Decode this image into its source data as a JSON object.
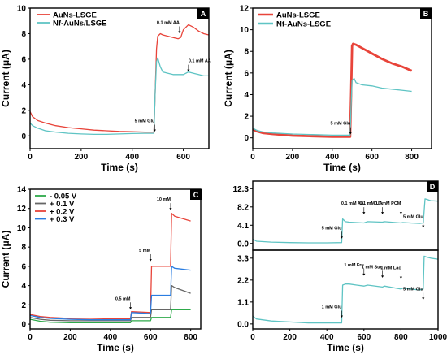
{
  "chart_data": [
    {
      "panel": "A",
      "type": "line",
      "xlabel": "Time (s)",
      "ylabel": "Current (μA)",
      "xlim": [
        0,
        700
      ],
      "ylim": [
        -1,
        10
      ],
      "xticks": [
        0,
        200,
        400,
        600
      ],
      "yticks": [
        0,
        2,
        4,
        6,
        8,
        10
      ],
      "legend": "top-left",
      "series": [
        {
          "name": "AuNs-LSGE",
          "color": "#e8443a",
          "x": [
            0,
            10,
            30,
            60,
            100,
            150,
            200,
            250,
            300,
            350,
            400,
            450,
            485,
            490,
            495,
            500,
            510,
            520,
            540,
            560,
            580,
            590,
            600,
            620,
            640,
            660,
            680,
            700
          ],
          "y": [
            1.9,
            1.5,
            1.2,
            1.0,
            0.8,
            0.65,
            0.55,
            0.45,
            0.4,
            0.35,
            0.32,
            0.3,
            0.3,
            3.5,
            6.8,
            7.8,
            8.0,
            7.9,
            7.8,
            7.7,
            7.6,
            7.7,
            8.3,
            8.7,
            8.5,
            8.2,
            8.0,
            7.9
          ]
        },
        {
          "name": "Nf-AuNs/LSGE",
          "color": "#5fc4c4",
          "x": [
            0,
            10,
            30,
            60,
            100,
            150,
            200,
            250,
            300,
            350,
            400,
            450,
            485,
            490,
            495,
            500,
            510,
            520,
            540,
            560,
            580,
            600,
            620,
            640,
            660,
            680,
            700
          ],
          "y": [
            1.0,
            0.8,
            0.6,
            0.4,
            0.3,
            0.2,
            0.15,
            0.12,
            0.12,
            0.15,
            0.18,
            0.2,
            0.2,
            3.5,
            5.8,
            6.1,
            5.4,
            5.0,
            4.9,
            4.8,
            4.8,
            4.8,
            5.0,
            4.9,
            4.8,
            4.7,
            4.7
          ]
        }
      ],
      "annotations": [
        {
          "text": "5 mM Glu",
          "x": 488,
          "y": 0.3
        },
        {
          "text": "0.1 mM AA",
          "x": 585,
          "y": 8.0
        },
        {
          "text": "0.1 mM AA",
          "x": 620,
          "y": 5.0
        }
      ],
      "label": "A"
    },
    {
      "panel": "B",
      "type": "line",
      "xlabel": "Time (s)",
      "ylabel": "Current (μA)",
      "xlim": [
        0,
        900
      ],
      "ylim": [
        -1,
        12
      ],
      "xticks": [
        0,
        200,
        400,
        600,
        800
      ],
      "yticks": [
        0,
        2,
        4,
        6,
        8,
        10,
        12
      ],
      "legend": "top-left",
      "series": [
        {
          "name": "AuNs-LSGE",
          "color": "#e8443a",
          "x": [
            0,
            20,
            50,
            100,
            200,
            300,
            400,
            490,
            495,
            500,
            505,
            520,
            550,
            600,
            650,
            700,
            750,
            800
          ],
          "y": [
            0.8,
            0.6,
            0.45,
            0.35,
            0.2,
            0.15,
            0.1,
            0.1,
            4.0,
            8.5,
            8.7,
            8.6,
            8.3,
            7.8,
            7.3,
            6.9,
            6.6,
            6.2
          ]
        },
        {
          "name": "Nf-AuNs-LSGE",
          "color": "#5fc4c4",
          "x": [
            0,
            20,
            50,
            100,
            200,
            300,
            400,
            490,
            495,
            500,
            510,
            520,
            550,
            600,
            650,
            700,
            750,
            800
          ],
          "y": [
            0.9,
            0.7,
            0.55,
            0.45,
            0.35,
            0.3,
            0.25,
            0.25,
            3.0,
            5.3,
            5.5,
            5.1,
            4.9,
            4.8,
            4.6,
            4.5,
            4.4,
            4.3
          ]
        }
      ],
      "annotations": [
        {
          "text": "5 mM Glu",
          "x": 492,
          "y": 0.3
        }
      ],
      "label": "B"
    },
    {
      "panel": "C",
      "type": "line",
      "xlabel": "Time (s)",
      "ylabel": "Current (μA)",
      "xlim": [
        0,
        850
      ],
      "ylim": [
        -0.5,
        14
      ],
      "xticks": [
        0,
        200,
        400,
        600,
        800
      ],
      "yticks": [
        0,
        2,
        4,
        6,
        8,
        10,
        12,
        14
      ],
      "legend": "top-left",
      "series": [
        {
          "name": "- 0.05  V",
          "color": "#2eaa4a",
          "x": [
            0,
            50,
            100,
            200,
            300,
            400,
            500,
            505,
            600,
            605,
            700,
            705,
            800
          ],
          "y": [
            0.5,
            0.3,
            0.2,
            0.15,
            0.15,
            0.15,
            0.15,
            0.35,
            0.35,
            0.7,
            0.7,
            1.5,
            1.5
          ]
        },
        {
          "name": "+ 0.1  V",
          "color": "#666666",
          "x": [
            0,
            50,
            100,
            200,
            300,
            400,
            500,
            505,
            600,
            605,
            700,
            705,
            720,
            800
          ],
          "y": [
            0.7,
            0.5,
            0.4,
            0.35,
            0.35,
            0.35,
            0.35,
            0.7,
            0.7,
            1.5,
            1.5,
            4.0,
            3.8,
            3.2
          ]
        },
        {
          "name": "+ 0.2  V",
          "color": "#e8443a",
          "x": [
            0,
            50,
            100,
            200,
            300,
            400,
            500,
            505,
            600,
            605,
            700,
            705,
            720,
            800
          ],
          "y": [
            1.0,
            0.8,
            0.7,
            0.6,
            0.6,
            0.55,
            0.55,
            1.3,
            1.2,
            6.0,
            6.0,
            11.5,
            11.2,
            10.7
          ]
        },
        {
          "name": "+ 0.3  V",
          "color": "#2a7de1",
          "x": [
            0,
            50,
            100,
            200,
            300,
            400,
            500,
            505,
            600,
            605,
            700,
            705,
            720,
            800
          ],
          "y": [
            0.9,
            0.7,
            0.6,
            0.5,
            0.45,
            0.45,
            0.45,
            1.2,
            1.1,
            3.0,
            3.0,
            6.0,
            5.8,
            5.6
          ]
        }
      ],
      "annotations": [
        {
          "text": "0.5 mM",
          "x": 500,
          "y": 1.5
        },
        {
          "text": "5 mM",
          "x": 600,
          "y": 6.5
        },
        {
          "text": "10 mM",
          "x": 700,
          "y": 11.8
        }
      ],
      "label": "C"
    },
    {
      "panel": "D-top",
      "type": "line",
      "xlim": [
        0,
        1000
      ],
      "ylim": [
        -1.5,
        14
      ],
      "yticks": [
        0.0,
        4.1,
        8.2,
        12.3
      ],
      "series": [
        {
          "color": "#5fc4c4",
          "x": [
            0,
            20,
            100,
            200,
            300,
            400,
            480,
            485,
            500,
            520,
            560,
            600,
            620,
            700,
            710,
            800,
            810,
            900,
            920,
            930,
            940,
            960,
            1000
          ],
          "y": [
            1.0,
            0.5,
            0.3,
            0.2,
            0.15,
            0.15,
            0.2,
            5.5,
            4.9,
            4.8,
            4.7,
            4.6,
            4.9,
            4.8,
            4.9,
            4.6,
            4.7,
            4.5,
            4.6,
            10.0,
            9.9,
            9.6,
            9.5
          ]
        }
      ],
      "annotations": [
        {
          "text": "5 mM Glu",
          "x": 480,
          "y": 1.0
        },
        {
          "text": "0.1 mM AA",
          "x": 600,
          "y": 6.5
        },
        {
          "text": "0.1 mM UA",
          "x": 700,
          "y": 6.5
        },
        {
          "text": "0.1 mM PCM",
          "x": 800,
          "y": 6.5
        },
        {
          "text": "5 mM Glu",
          "x": 920,
          "y": 3.5
        }
      ],
      "label": "D"
    },
    {
      "panel": "D-bottom",
      "type": "line",
      "xlabel": "Time (s)",
      "xlim": [
        0,
        1000
      ],
      "ylim": [
        -0.25,
        3.7
      ],
      "xticks": [
        0,
        200,
        400,
        600,
        800,
        1000
      ],
      "yticks": [
        0.0,
        1.1,
        2.2,
        3.3
      ],
      "series": [
        {
          "color": "#5fc4c4",
          "x": [
            0,
            20,
            100,
            200,
            300,
            400,
            480,
            485,
            500,
            520,
            560,
            600,
            620,
            700,
            710,
            800,
            810,
            900,
            920,
            925,
            940,
            960,
            1000
          ],
          "y": [
            0.4,
            0.25,
            0.15,
            0.1,
            0.05,
            0.05,
            0.05,
            1.95,
            2.0,
            2.0,
            1.95,
            1.9,
            1.95,
            1.85,
            1.9,
            1.75,
            1.8,
            1.7,
            1.75,
            3.4,
            3.35,
            3.3,
            3.25
          ]
        }
      ],
      "annotations": [
        {
          "text": "1 mM Glu",
          "x": 480,
          "y": 0.3
        },
        {
          "text": "1 mM Fru",
          "x": 600,
          "y": 2.4
        },
        {
          "text": "1 mM Suc",
          "x": 700,
          "y": 2.3
        },
        {
          "text": "1 mM Lac",
          "x": 800,
          "y": 2.25
        },
        {
          "text": "5 mM Glu",
          "x": 920,
          "y": 1.2
        }
      ]
    }
  ]
}
